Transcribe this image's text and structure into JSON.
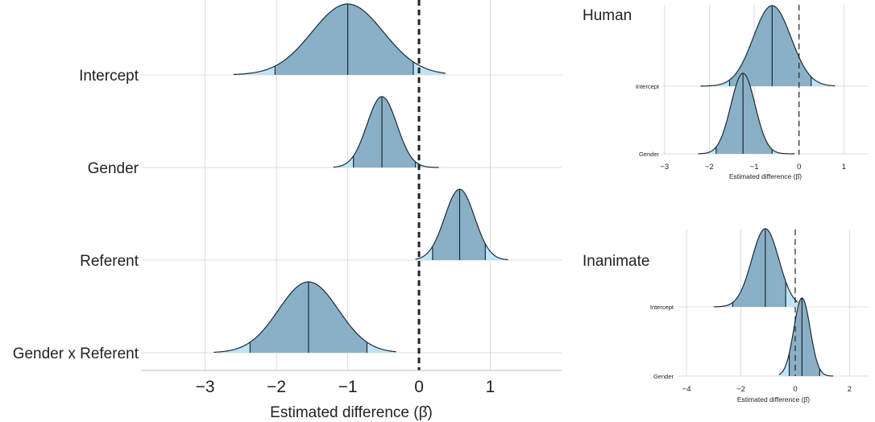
{
  "chart_data": [
    {
      "type": "ridgeline",
      "title": "",
      "xlabel": "Estimated difference (β̂)",
      "xticks": [
        -3,
        -2,
        -1,
        0,
        1
      ],
      "xlim": [
        -3.9,
        2.0
      ],
      "reference_line": 0,
      "series": [
        {
          "name": "Intercept",
          "median": -1.0,
          "mode": -1.0,
          "q_low": -2.02,
          "q_high": -0.08,
          "min": -2.6,
          "max": 0.37,
          "sd": 0.5
        },
        {
          "name": "Gender",
          "median": -0.52,
          "mode": -0.52,
          "q_low": -0.92,
          "q_high": -0.05,
          "min": -1.2,
          "max": 0.28,
          "sd": 0.21
        },
        {
          "name": "Referent",
          "median": 0.57,
          "mode": 0.57,
          "q_low": 0.19,
          "q_high": 0.93,
          "min": -0.05,
          "max": 1.25,
          "sd": 0.21
        },
        {
          "name": "Gender x Referent",
          "median": -1.55,
          "mode": -1.55,
          "q_low": -2.37,
          "q_high": -0.73,
          "min": -2.88,
          "max": -0.32,
          "sd": 0.42
        }
      ]
    },
    {
      "type": "ridgeline",
      "title": "Human",
      "xlabel": "Estimated difference (β̂)",
      "xticks": [
        -3,
        -2,
        -1,
        0,
        1
      ],
      "xlim": [
        -3.05,
        1.55
      ],
      "reference_line": 0,
      "series": [
        {
          "name": "Intercept",
          "median": -0.6,
          "mode": -0.6,
          "q_low": -1.55,
          "q_high": 0.27,
          "min": -2.2,
          "max": 0.8,
          "sd": 0.42
        },
        {
          "name": "Gender",
          "median": -1.25,
          "mode": -1.25,
          "q_low": -1.85,
          "q_high": -0.6,
          "min": -2.25,
          "max": -0.1,
          "sd": 0.27
        }
      ]
    },
    {
      "type": "ridgeline",
      "title": "Inanimate",
      "xlabel": "Estimated difference (β̂)",
      "xticks": [
        -4,
        -2,
        0,
        2
      ],
      "xlim": [
        -4.3,
        2.7
      ],
      "reference_line": 0,
      "series": [
        {
          "name": "Intercept",
          "median": -1.1,
          "mode": -1.1,
          "q_low": -2.3,
          "q_high": -0.35,
          "min": -3.0,
          "max": 0.1,
          "sd": 0.5
        },
        {
          "name": "Gender",
          "median": 0.25,
          "mode": 0.25,
          "q_low": -0.22,
          "q_high": 0.9,
          "min": -0.6,
          "max": 1.4,
          "sd": 0.3
        }
      ]
    }
  ]
}
